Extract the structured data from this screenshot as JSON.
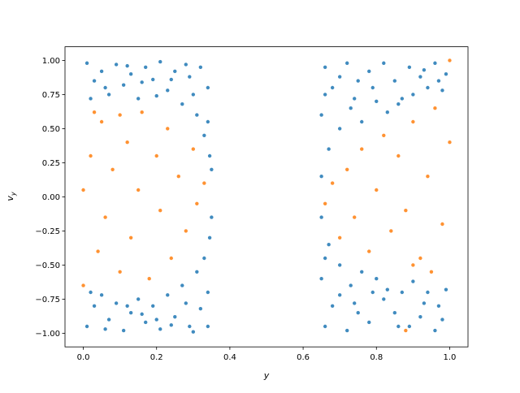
{
  "chart_data": {
    "type": "scatter",
    "xlabel": "y",
    "ylabel": "v",
    "ylabel_subscript": "y",
    "xlim": [
      -0.05,
      1.05
    ],
    "ylim": [
      -1.1,
      1.1
    ],
    "xticks": [
      {
        "value": 0,
        "label": "0.0"
      },
      {
        "value": 0.2,
        "label": "0.2"
      },
      {
        "value": 0.4,
        "label": "0.4"
      },
      {
        "value": 0.6,
        "label": "0.6"
      },
      {
        "value": 0.8,
        "label": "0.8"
      },
      {
        "value": 1,
        "label": "1.0"
      }
    ],
    "yticks": [
      {
        "value": -1,
        "label": "−1.00"
      },
      {
        "value": -0.75,
        "label": "−0.75"
      },
      {
        "value": -0.5,
        "label": "−0.50"
      },
      {
        "value": -0.25,
        "label": "−0.25"
      },
      {
        "value": 0,
        "label": "0.00"
      },
      {
        "value": 0.25,
        "label": "0.25"
      },
      {
        "value": 0.5,
        "label": "0.50"
      },
      {
        "value": 0.75,
        "label": "0.75"
      },
      {
        "value": 1,
        "label": "1.00"
      }
    ],
    "series": [
      {
        "color": "#1f77b4",
        "x": [
          0.01,
          0.03,
          0.05,
          0.07,
          0.09,
          0.11,
          0.13,
          0.15,
          0.17,
          0.19,
          0.21,
          0.23,
          0.25,
          0.27,
          0.29,
          0.31,
          0.32,
          0.33,
          0.34,
          0.345,
          0.35,
          0.34,
          0.02,
          0.12,
          0.2,
          0.28,
          0.3,
          0.06,
          0.16,
          0.24,
          0.01,
          0.03,
          0.05,
          0.07,
          0.09,
          0.11,
          0.13,
          0.15,
          0.17,
          0.19,
          0.21,
          0.23,
          0.25,
          0.27,
          0.29,
          0.31,
          0.32,
          0.33,
          0.34,
          0.345,
          0.35,
          0.34,
          0.02,
          0.12,
          0.2,
          0.28,
          0.3,
          0.06,
          0.16,
          0.24,
          0.65,
          0.65,
          0.66,
          0.67,
          0.68,
          0.7,
          0.72,
          0.73,
          0.75,
          0.76,
          0.78,
          0.8,
          0.82,
          0.83,
          0.85,
          0.87,
          0.89,
          0.9,
          0.92,
          0.94,
          0.96,
          0.97,
          0.99,
          0.66,
          0.7,
          0.74,
          0.79,
          0.86,
          0.93,
          0.98,
          0.65,
          0.65,
          0.66,
          0.67,
          0.68,
          0.7,
          0.72,
          0.73,
          0.75,
          0.76,
          0.78,
          0.8,
          0.82,
          0.83,
          0.85,
          0.87,
          0.89,
          0.9,
          0.92,
          0.94,
          0.96,
          0.97,
          0.99,
          0.66,
          0.7,
          0.74,
          0.79,
          0.86,
          0.93,
          0.98
        ],
        "values": [
          0.98,
          0.85,
          0.92,
          0.75,
          0.97,
          0.82,
          0.9,
          0.72,
          0.95,
          0.86,
          0.99,
          0.78,
          0.92,
          0.68,
          0.88,
          0.6,
          0.95,
          0.45,
          0.8,
          0.3,
          0.2,
          0.55,
          0.72,
          0.96,
          0.74,
          0.97,
          0.75,
          0.8,
          0.84,
          0.86,
          -0.95,
          -0.8,
          -0.72,
          -0.9,
          -0.78,
          -0.98,
          -0.85,
          -0.75,
          -0.92,
          -0.8,
          -0.97,
          -0.72,
          -0.88,
          -0.65,
          -0.95,
          -0.55,
          -0.82,
          -0.45,
          -0.7,
          -0.3,
          -0.15,
          -0.95,
          -0.7,
          -0.8,
          -0.9,
          -0.78,
          -0.99,
          -0.97,
          -0.86,
          -0.94,
          0.15,
          0.6,
          0.95,
          0.35,
          0.8,
          0.5,
          0.98,
          0.65,
          0.85,
          0.55,
          0.92,
          0.7,
          0.98,
          0.62,
          0.85,
          0.72,
          0.95,
          0.75,
          0.88,
          0.8,
          0.98,
          0.85,
          0.9,
          0.75,
          0.88,
          0.72,
          0.8,
          0.68,
          0.93,
          0.78,
          -0.15,
          -0.6,
          -0.95,
          -0.35,
          -0.8,
          -0.5,
          -0.98,
          -0.65,
          -0.85,
          -0.55,
          -0.92,
          -0.6,
          -0.75,
          -0.68,
          -0.85,
          -0.7,
          -0.95,
          -0.62,
          -0.88,
          -0.7,
          -0.98,
          -0.8,
          -0.68,
          -0.45,
          -0.72,
          -0.78,
          -0.7,
          -0.95,
          -0.78,
          -0.9
        ]
      },
      {
        "color": "#ff7f0e",
        "x": [
          0,
          0.02,
          0.04,
          0.05,
          0.06,
          0.08,
          0.1,
          0.1,
          0.12,
          0.13,
          0.15,
          0.16,
          0.18,
          0.2,
          0.21,
          0.23,
          0.24,
          0.26,
          0.28,
          0.3,
          0.31,
          0.33,
          0,
          0.03,
          0.66,
          0.68,
          0.7,
          0.72,
          0.74,
          0.76,
          0.78,
          0.8,
          0.82,
          0.84,
          0.86,
          0.88,
          0.9,
          0.92,
          0.94,
          0.96,
          0.98,
          1,
          1,
          0.95,
          0.88,
          0.9
        ],
        "values": [
          0.05,
          0.3,
          -0.4,
          0.55,
          -0.15,
          0.2,
          0.6,
          -0.55,
          0.4,
          -0.3,
          0.05,
          0.62,
          -0.6,
          0.3,
          -0.1,
          0.5,
          -0.45,
          0.15,
          -0.25,
          0.35,
          -0.05,
          0.1,
          -0.65,
          0.62,
          -0.05,
          0.1,
          -0.3,
          0.2,
          -0.15,
          0.35,
          -0.4,
          0.05,
          0.45,
          -0.25,
          0.3,
          -0.1,
          0.55,
          -0.45,
          0.15,
          0.65,
          -0.2,
          0.4,
          1,
          -0.55,
          -0.98,
          -0.5
        ]
      }
    ]
  }
}
